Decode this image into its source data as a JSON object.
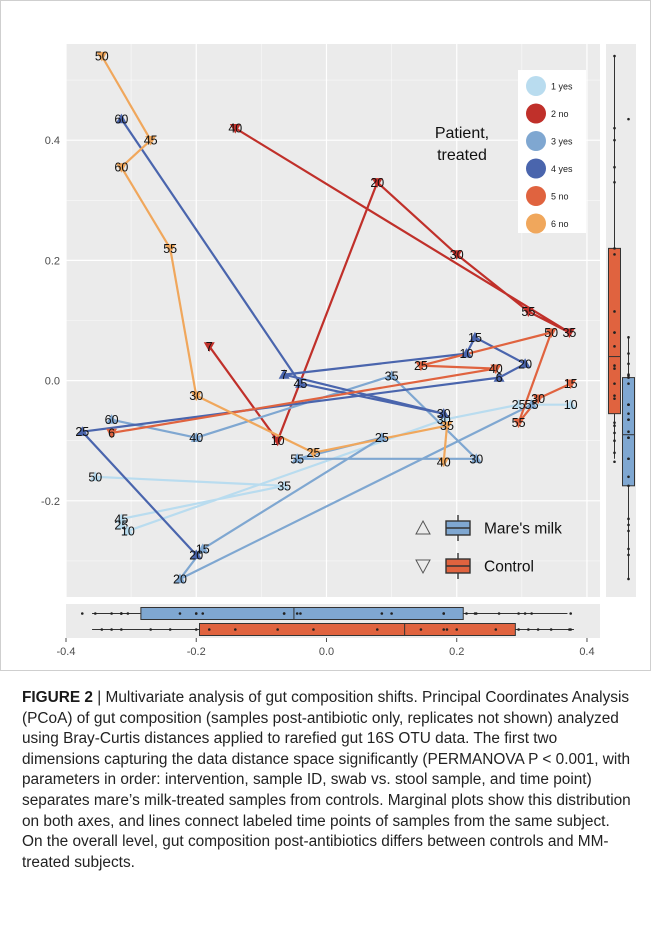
{
  "figure": {
    "label": "FIGURE 2",
    "separator": " | ",
    "caption": "Multivariate analysis of gut composition shifts. Principal Coordinates Analysis (PCoA) of gut composition (samples post-antibiotic only, replicates not shown) analyzed using Bray-Curtis distances applied to rarefied gut 16S OTU data. The first two dimensions capturing the data distance space significantly (PERMANOVA P < 0.001, with parameters in order: intervention, sample ID, swab vs. stool sample, and time point) separates mare’s milk-treated samples from controls. Marginal plots show this distribution on both axes, and lines connect labeled time points of samples from the same subject. On the overall level, gut composition post-antibiotics differs between controls and MM-treated subjects."
  },
  "colors": {
    "p1": "#b9dcef",
    "p2": "#c0302a",
    "p3": "#7fa7d1",
    "p4": "#4a65ad",
    "p5": "#e0633f",
    "p6": "#f0a75c",
    "mare": "#7fa7d1",
    "control": "#e0633f",
    "panel": "#ebebeb",
    "grid": "#ffffff"
  },
  "chart_data": {
    "type": "scatter",
    "xlim": [
      -0.4,
      0.42
    ],
    "ylim": [
      -0.36,
      0.56
    ],
    "x_ticks": [
      -0.4,
      -0.2,
      0.0,
      0.2,
      0.4
    ],
    "x_tick_labels": [
      "-0.4",
      "-0.2",
      "0.0",
      "0.2",
      "0.4"
    ],
    "y_ticks": [
      -0.2,
      0.0,
      0.2,
      0.4
    ],
    "y_tick_labels": [
      "-0.2",
      "0.0",
      "0.2",
      "0.4"
    ],
    "grid": true,
    "legend_patients": {
      "title": "Patient, treated",
      "title_lines": [
        "Patient,",
        "treated"
      ],
      "placement": "top-right",
      "entries": [
        {
          "label": "1 yes",
          "color": "#b9dcef"
        },
        {
          "label": "2 no",
          "color": "#c0302a"
        },
        {
          "label": "3 yes",
          "color": "#7fa7d1"
        },
        {
          "label": "4 yes",
          "color": "#4a65ad"
        },
        {
          "label": "5 no",
          "color": "#e0633f"
        },
        {
          "label": "6 no",
          "color": "#f0a75c"
        }
      ]
    },
    "legend_groups": {
      "placement": "bottom-right",
      "entries": [
        {
          "label": "Mare's milk",
          "shape": "triangle-up",
          "color": "#7fa7d1"
        },
        {
          "label": "Control",
          "shape": "triangle-down",
          "color": "#e0633f"
        }
      ]
    },
    "series": [
      {
        "patient": "1",
        "color": "#b9dcef",
        "shape": "up",
        "points": [
          {
            "t": "50",
            "x": -0.355,
            "y": -0.16
          },
          {
            "t": "35",
            "x": -0.065,
            "y": -0.175
          },
          {
            "t": "45",
            "x": -0.315,
            "y": -0.23
          },
          {
            "t": "25",
            "x": -0.315,
            "y": -0.24
          },
          {
            "t": "10",
            "x": -0.305,
            "y": -0.25
          },
          {
            "t": "30",
            "x": 0.18,
            "y": -0.065
          },
          {
            "t": "25",
            "x": 0.295,
            "y": -0.04
          },
          {
            "t": "10",
            "x": 0.375,
            "y": -0.04
          }
        ]
      },
      {
        "patient": "2",
        "color": "#c0302a",
        "shape": "down",
        "points": [
          {
            "t": "7",
            "x": -0.18,
            "y": 0.057
          },
          {
            "t": "10",
            "x": -0.075,
            "y": -0.1
          },
          {
            "t": "20",
            "x": 0.078,
            "y": 0.33
          },
          {
            "t": "30",
            "x": 0.2,
            "y": 0.21
          },
          {
            "t": "55",
            "x": 0.31,
            "y": 0.115
          },
          {
            "t": "35",
            "x": 0.373,
            "y": 0.08
          },
          {
            "t": "40",
            "x": -0.14,
            "y": 0.42
          }
        ]
      },
      {
        "patient": "3",
        "color": "#7fa7d1",
        "shape": "up",
        "points": [
          {
            "t": "60",
            "x": -0.33,
            "y": -0.065
          },
          {
            "t": "40",
            "x": -0.2,
            "y": -0.095
          },
          {
            "t": "35",
            "x": 0.1,
            "y": 0.008
          },
          {
            "t": "30",
            "x": 0.23,
            "y": -0.13
          },
          {
            "t": "55",
            "x": -0.045,
            "y": -0.13
          },
          {
            "t": "25",
            "x": 0.085,
            "y": -0.095
          },
          {
            "t": "15",
            "x": -0.19,
            "y": -0.28
          },
          {
            "t": "20",
            "x": -0.225,
            "y": -0.33
          },
          {
            "t": "55",
            "x": 0.315,
            "y": -0.04
          }
        ]
      },
      {
        "patient": "4",
        "color": "#4a65ad",
        "shape": "up",
        "points": [
          {
            "t": "60",
            "x": -0.315,
            "y": 0.435
          },
          {
            "t": "45",
            "x": -0.04,
            "y": -0.005
          },
          {
            "t": "30",
            "x": 0.18,
            "y": -0.055
          },
          {
            "t": "7",
            "x": -0.065,
            "y": 0.01
          },
          {
            "t": "10",
            "x": 0.215,
            "y": 0.045
          },
          {
            "t": "15",
            "x": 0.228,
            "y": 0.072
          },
          {
            "t": "20",
            "x": 0.305,
            "y": 0.028
          },
          {
            "t": "6",
            "x": 0.265,
            "y": 0.005
          },
          {
            "t": "25",
            "x": -0.375,
            "y": -0.085
          },
          {
            "t": "20",
            "x": -0.2,
            "y": -0.29
          }
        ]
      },
      {
        "patient": "5",
        "color": "#e0633f",
        "shape": "down",
        "points": [
          {
            "t": "6",
            "x": -0.33,
            "y": -0.087
          },
          {
            "t": "40",
            "x": 0.26,
            "y": 0.02
          },
          {
            "t": "25",
            "x": 0.145,
            "y": 0.025
          },
          {
            "t": "50",
            "x": 0.345,
            "y": 0.08
          },
          {
            "t": "55",
            "x": 0.295,
            "y": -0.07
          },
          {
            "t": "30",
            "x": 0.325,
            "y": -0.03
          },
          {
            "t": "15",
            "x": 0.375,
            "y": -0.005
          }
        ]
      },
      {
        "patient": "6",
        "color": "#f0a75c",
        "shape": "down",
        "points": [
          {
            "t": "50",
            "x": -0.345,
            "y": 0.54
          },
          {
            "t": "45",
            "x": -0.27,
            "y": 0.4
          },
          {
            "t": "60",
            "x": -0.315,
            "y": 0.355
          },
          {
            "t": "55",
            "x": -0.24,
            "y": 0.22
          },
          {
            "t": "30",
            "x": -0.2,
            "y": -0.025
          },
          {
            "t": "25",
            "x": -0.02,
            "y": -0.12
          },
          {
            "t": "35",
            "x": 0.185,
            "y": -0.075
          },
          {
            "t": "40",
            "x": 0.18,
            "y": -0.135
          }
        ]
      }
    ],
    "marginal_x": [
      {
        "group": "Mare's milk",
        "color": "#7fa7d1",
        "whisker": [
          -0.36,
          0.37
        ],
        "q1": -0.285,
        "median": -0.05,
        "q3": 0.21
      },
      {
        "group": "Control",
        "color": "#e0633f",
        "whisker": [
          -0.36,
          0.38
        ],
        "q1": -0.195,
        "median": 0.12,
        "q3": 0.29
      }
    ],
    "marginal_y": [
      {
        "group": "Control",
        "color": "#e0633f",
        "whisker": [
          -0.13,
          0.54
        ],
        "q1": -0.055,
        "median": 0.04,
        "q3": 0.22
      },
      {
        "group": "Mare's milk",
        "color": "#7fa7d1",
        "whisker": [
          -0.33,
          0.07
        ],
        "q1": -0.175,
        "median": -0.09,
        "q3": 0.005
      }
    ]
  }
}
